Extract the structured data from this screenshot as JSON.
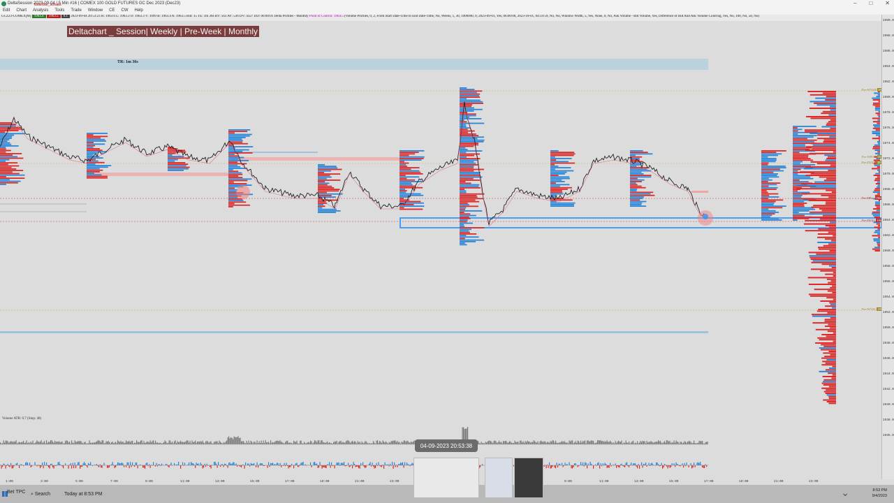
{
  "window": {
    "title": "DeltaSession 2023-09-04 | 5 Min #16 | COMEX 100 GOLD FUTURES GC Dec 2023 (Dec23)",
    "timeline_tag": "timeline_stream",
    "controls": [
      "–",
      "□",
      "✕"
    ]
  },
  "menu": [
    "Edit",
    "Chart",
    "Analysis",
    "Tools",
    "Trade",
    "Window",
    "CE",
    "CW",
    "Help"
  ],
  "infobar": {
    "symbol": "GCZ23-COMEX[M]",
    "chips": [
      {
        "text": "1963.4",
        "color": "#2b7a2b"
      },
      {
        "text": "1963.5",
        "color": "#b22222"
      },
      {
        "text": "0.1",
        "color": "#444444"
      }
    ],
    "details": "2023-09-04 20:53:23 H: 1963.6 L: 1963.3 O: 1963.3 V: 1099 B: 1963.4 A: 1963.5 Bid: 15 TE: 1m 36s BV: 563 AV: 536 DV: 4327 DD: 00:00:01 Delta Profiles - Monthly",
    "poc_label": "Point of Control: 1964.5",
    "rest": "(Volume Profiles, 0, 2, From Start Date-Time to End Date-Time, No, Weeks, 1, 30, 1000000, 0, 2023-09-01, Yes, 06:00:00, 2023-10-01, 04:59:59, No, No, Window Width, 5, Yes, None, 0, No, Ask Volume - Bid Volume, Yes, Difference of Bid And Ask Volume Coloring, Yes, No, 100, No, 58, No)"
  },
  "banner": "Deltachart _ Session| Weekly | Pre-Week | Monthly",
  "tr_label": "TR: 1m 36s",
  "price_axis": [
    "1990.0",
    "1988.0",
    "1986.0",
    "1984.0",
    "1982.0",
    "1980.0",
    "1978.0",
    "1976.0",
    "1974.0",
    "1972.0",
    "1970.0",
    "1968.0",
    "1966.0",
    "1964.0",
    "1962.0",
    "1960.0",
    "1958.0",
    "1956.0",
    "1954.0",
    "1952.0",
    "1950.0",
    "1948.0",
    "1946.0",
    "1944.0",
    "1942.0",
    "1940.0",
    "1938.0",
    "1936.0"
  ],
  "level_tags": [
    {
      "text": "Pre-WVAH",
      "value": "1980.0"
    },
    {
      "text": "Pre-WPOC",
      "value": "1972.5"
    },
    {
      "text": "Pre-DVAH",
      "value": "1971.5"
    },
    {
      "text": "Pre-DPoc",
      "value": "1966.2"
    },
    {
      "text": "Pre-DVAL",
      "value": "1963.5"
    },
    {
      "text": "Pre-WVAL",
      "value": "1952.0"
    }
  ],
  "volume_label": "Volume ATR: 0.7 (Smp: 48)",
  "tooltip": "04-09-2023 20:53:38",
  "time_axis": [
    "1:00",
    "3:00",
    "5:00",
    "7:00",
    "9:00",
    "11:00",
    "13:00",
    "15:00",
    "17:00",
    "19:00",
    "21:00",
    "23:00",
    "1:00",
    "3:00",
    "5:00",
    "7:00",
    "9:00",
    "11:00",
    "13:00",
    "15:00",
    "17:00",
    "19:00",
    "21:00",
    "23:00"
  ],
  "taskbar": {
    "weather": "Bet ТРС",
    "search": "Search",
    "clock_time": "8:53 PM",
    "clock_date": "9/4/2023",
    "notice": "Today at 8:53 PM"
  }
}
